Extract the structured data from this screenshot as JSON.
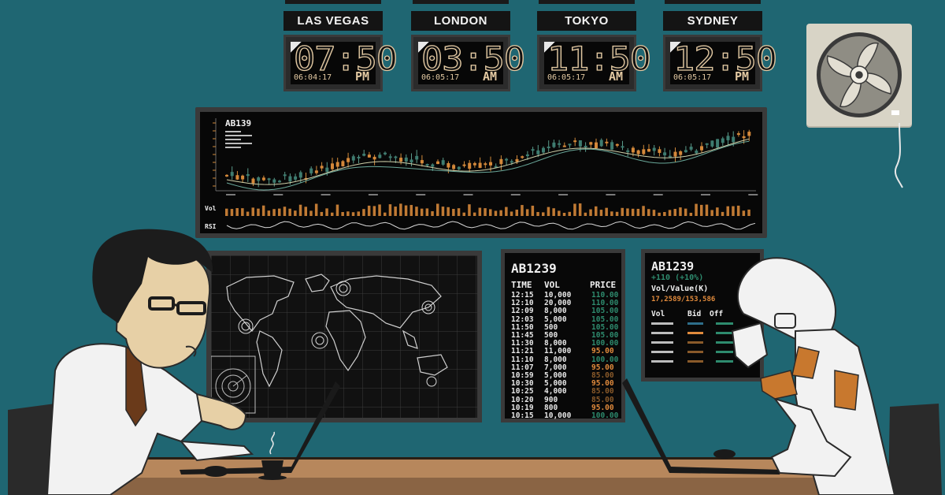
{
  "clocks": [
    {
      "city": "LAS VEGAS",
      "time": "07:50",
      "date": "06:04:17",
      "ampm": "PM"
    },
    {
      "city": "LONDON",
      "time": "03:50",
      "date": "06:05:17",
      "ampm": "AM"
    },
    {
      "city": "TOKYO",
      "time": "11:50",
      "date": "06:05:17",
      "ampm": "AM"
    },
    {
      "city": "SYDNEY",
      "time": "12:50",
      "date": "06:05:17",
      "ampm": "PM"
    }
  ],
  "main_chart": {
    "symbol": "AB139",
    "volume_label": "Vol",
    "rsi_label": "RSI"
  },
  "quote_board": {
    "symbol": "AB1239",
    "columns": [
      "TIME",
      "VOL",
      "PRICE"
    ],
    "rows": [
      {
        "time": "12:15",
        "vol": "10,000",
        "price": "110.00"
      },
      {
        "time": "12:10",
        "vol": "20,000",
        "price": "110.00"
      },
      {
        "time": "12:09",
        "vol": "8,000",
        "price": "105.00"
      },
      {
        "time": "12:03",
        "vol": "5,000",
        "price": "105.00"
      },
      {
        "time": "11:50",
        "vol": "500",
        "price": "105.00"
      },
      {
        "time": "11:45",
        "vol": "500",
        "price": "105.00"
      },
      {
        "time": "11:30",
        "vol": "8,000",
        "price": "100.00"
      },
      {
        "time": "11:21",
        "vol": "11,000",
        "price": "95.00"
      },
      {
        "time": "11:10",
        "vol": "8,000",
        "price": "100.00"
      },
      {
        "time": "11:07",
        "vol": "7,000",
        "price": "95.00"
      },
      {
        "time": "10:59",
        "vol": "5,000",
        "price": "85.00"
      },
      {
        "time": "10:30",
        "vol": "5,000",
        "price": "95.00"
      },
      {
        "time": "10:25",
        "vol": "4,000",
        "price": "85.00"
      },
      {
        "time": "10:20",
        "vol": "900",
        "price": "85.00"
      },
      {
        "time": "10:19",
        "vol": "800",
        "price": "95.00"
      },
      {
        "time": "10:15",
        "vol": "10,000",
        "price": "100.00"
      }
    ]
  },
  "detail_board": {
    "symbol": "AB1239",
    "change": "+110 (+10%)",
    "vol_value_label": "Vol/Value(K)",
    "vol_value": "17,2589/153,586",
    "columns": [
      "Vol",
      "Bid",
      "Off"
    ]
  },
  "colors": {
    "background": "#1f6672",
    "up_green": "#2e8b6e",
    "down_orange": "#e08a3c",
    "dim_orange": "#8a5a2a",
    "clock_digits": "#e3c9a2",
    "desk": "#b7875c"
  }
}
